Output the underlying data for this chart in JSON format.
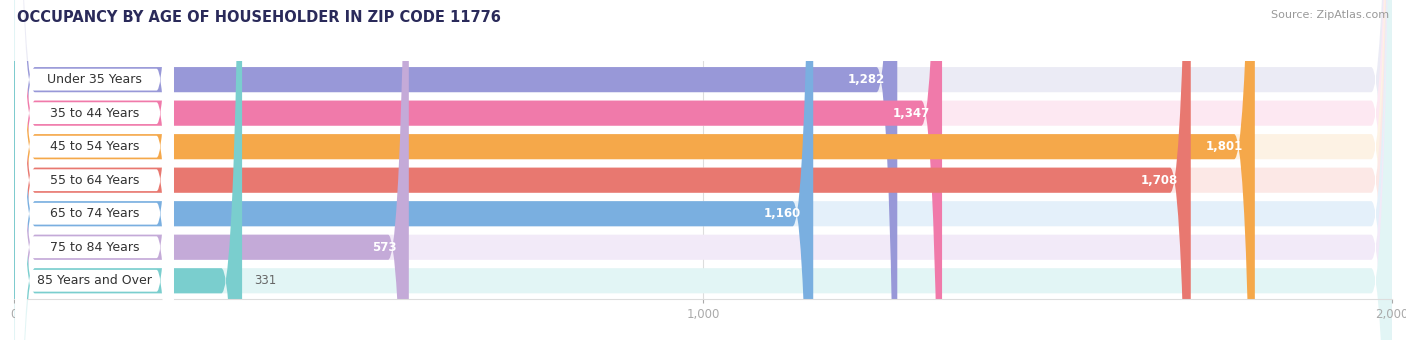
{
  "title": "OCCUPANCY BY AGE OF HOUSEHOLDER IN ZIP CODE 11776",
  "source": "Source: ZipAtlas.com",
  "categories": [
    "Under 35 Years",
    "35 to 44 Years",
    "45 to 54 Years",
    "55 to 64 Years",
    "65 to 74 Years",
    "75 to 84 Years",
    "85 Years and Over"
  ],
  "values": [
    1282,
    1347,
    1801,
    1708,
    1160,
    573,
    331
  ],
  "bar_colors": [
    "#9898d8",
    "#f07aaa",
    "#f5a84a",
    "#e87870",
    "#7aafe0",
    "#c4aad8",
    "#7acece"
  ],
  "bg_colors": [
    "#ebebf5",
    "#fde8f2",
    "#fdf2e4",
    "#fce8e6",
    "#e4f0fa",
    "#f2eaf8",
    "#e2f5f5"
  ],
  "label_bg": "#ffffff",
  "xlim": [
    0,
    2000
  ],
  "xticks": [
    0,
    1000,
    2000
  ],
  "title_color": "#2a2a5a",
  "title_fontsize": 10.5,
  "label_fontsize": 9,
  "value_fontsize": 8.5,
  "source_fontsize": 8,
  "bg_color": "#ffffff"
}
